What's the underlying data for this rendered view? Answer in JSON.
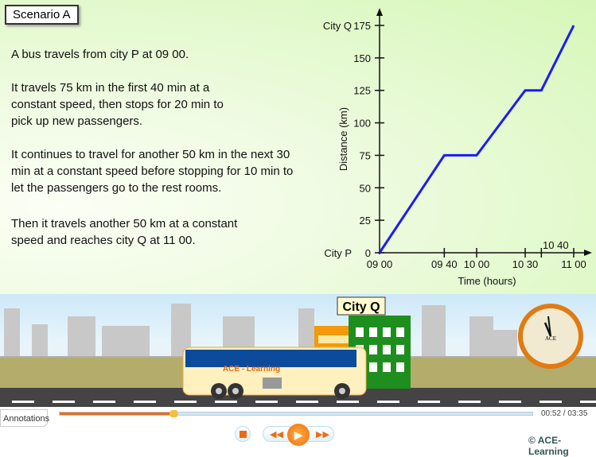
{
  "scenario_label": "Scenario A",
  "paragraphs": [
    "A bus travels from city P at 09 00.",
    "It travels 75 km in the first 40 min at a constant speed, then stops for 20 min to pick up new passengers.",
    "It continues to travel for another 50 km in the next 30 min at a constant speed before stopping for 10 min to let the passengers go to the rest rooms.",
    "Then it travels another 50 km at a constant speed and reaches city Q at 11 00."
  ],
  "chart_data": {
    "type": "line",
    "xlabel": "Time (hours)",
    "ylabel": "Distance (km)",
    "x_ticks": [
      "09 00",
      "09 40",
      "10 00",
      "10 30",
      "10 40",
      "11 00"
    ],
    "y_ticks": [
      0,
      25,
      50,
      75,
      100,
      125,
      150,
      175
    ],
    "y_tick_labels": {
      "0": "City P",
      "175": "City Q"
    },
    "ylim": [
      0,
      175
    ],
    "xlim": [
      "09 00",
      "11 00"
    ],
    "grid": false,
    "color": "#1a1aff",
    "points": [
      {
        "x": "09 00",
        "y": 0
      },
      {
        "x": "09 40",
        "y": 75
      },
      {
        "x": "10 00",
        "y": 75
      },
      {
        "x": "10 30",
        "y": 125
      },
      {
        "x": "10 40",
        "y": 125
      },
      {
        "x": "11 00",
        "y": 175
      }
    ]
  },
  "scene": {
    "sign": "City Q",
    "bus_label": "ACE - Learning",
    "clock_brand": "ACE",
    "clock_time": "10:59"
  },
  "controls": {
    "annotations": "Annotations",
    "elapsed": "00:52",
    "total": "03:35",
    "progress": 0.24,
    "copyright": "© ACE-Learning"
  }
}
